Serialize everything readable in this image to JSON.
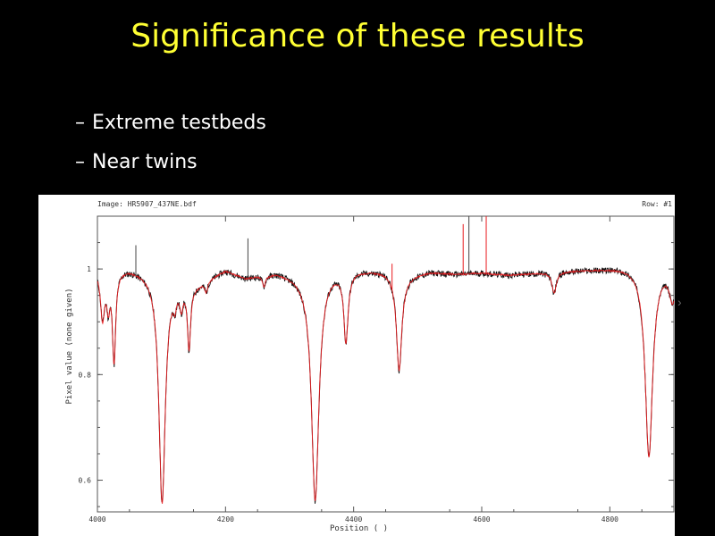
{
  "slide": {
    "title": "Significance of these results",
    "bullets": [
      {
        "dash": "–",
        "text": "Extreme testbeds"
      },
      {
        "dash": "–",
        "text": "Near twins"
      }
    ]
  },
  "colors": {
    "background": "#000000",
    "title": "#ffff33",
    "bullet_text": "#ffffff",
    "observed": "#111111",
    "model": "#e8191d"
  },
  "chart_data": {
    "type": "line",
    "header_left": "Image: HR5907_437NE.bdf",
    "header_right": "Row: #1",
    "xlabel": "Position ( )",
    "ylabel": "Pixel value (none given)",
    "xlim": [
      4000,
      4900
    ],
    "ylim": [
      0.54,
      1.1
    ],
    "x_ticks": [
      4000,
      4200,
      4400,
      4600,
      4800
    ],
    "y_ticks": [
      {
        "value": 1,
        "label": "1"
      },
      {
        "value": 0.8,
        "label": "0.8"
      },
      {
        "value": 0.6,
        "label": "0.6"
      }
    ],
    "continuum": 0.995,
    "lines": [
      {
        "center": 4008,
        "depth": 0.09,
        "width": 4
      },
      {
        "center": 4017,
        "depth": 0.06,
        "width": 3
      },
      {
        "center": 4026,
        "depth": 0.17,
        "width": 3
      },
      {
        "center": 4101,
        "depth": 0.43,
        "width": 6
      },
      {
        "center": 4121,
        "depth": 0.03,
        "width": 3
      },
      {
        "center": 4131,
        "depth": 0.04,
        "width": 3
      },
      {
        "center": 4143,
        "depth": 0.12,
        "width": 3
      },
      {
        "center": 4170,
        "depth": 0.02,
        "width": 3
      },
      {
        "center": 4260,
        "depth": 0.02,
        "width": 3
      },
      {
        "center": 4340,
        "depth": 0.43,
        "width": 7
      },
      {
        "center": 4388,
        "depth": 0.13,
        "width": 4
      },
      {
        "center": 4471,
        "depth": 0.18,
        "width": 5
      },
      {
        "center": 4713,
        "depth": 0.04,
        "width": 4
      },
      {
        "center": 4861,
        "depth": 0.36,
        "width": 7
      },
      {
        "center": 4898,
        "depth": 0.06,
        "width": 6
      }
    ],
    "ripples": [
      {
        "x": 4050,
        "dy": 0.006
      },
      {
        "x": 4090,
        "dy": -0.004
      },
      {
        "x": 4155,
        "dy": -0.022
      },
      {
        "x": 4200,
        "dy": 0.004
      },
      {
        "x": 4230,
        "dy": -0.01
      },
      {
        "x": 4280,
        "dy": 0.0
      },
      {
        "x": 4320,
        "dy": -0.008
      },
      {
        "x": 4360,
        "dy": 0.003
      },
      {
        "x": 4410,
        "dy": 0.004
      },
      {
        "x": 4445,
        "dy": 0.002
      },
      {
        "x": 4480,
        "dy": -0.008
      },
      {
        "x": 4520,
        "dy": 0.0
      },
      {
        "x": 4560,
        "dy": -0.004
      },
      {
        "x": 4600,
        "dy": -0.002
      },
      {
        "x": 4640,
        "dy": -0.006
      },
      {
        "x": 4690,
        "dy": -0.002
      },
      {
        "x": 4740,
        "dy": 0.002
      },
      {
        "x": 4790,
        "dy": 0.006
      },
      {
        "x": 4830,
        "dy": 0.01
      }
    ],
    "spikes": [
      {
        "x": 4060,
        "y": 1.045,
        "series": "observed"
      },
      {
        "x": 4235,
        "y": 1.058,
        "series": "observed"
      },
      {
        "x": 4571,
        "y": 1.085,
        "series": "model"
      },
      {
        "x": 4580,
        "y": 1.1,
        "series": "observed"
      },
      {
        "x": 4607,
        "y": 1.1,
        "series": "model"
      },
      {
        "x": 4460,
        "y": 1.01,
        "series": "model"
      }
    ]
  }
}
